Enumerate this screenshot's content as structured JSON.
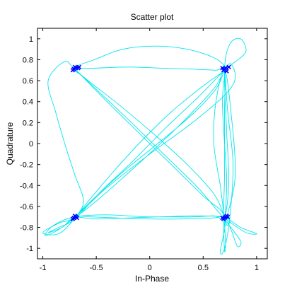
{
  "chart_data": {
    "type": "scatter",
    "title": "Scatter plot",
    "xlabel": "In-Phase",
    "ylabel": "Quadrature",
    "xlim": [
      -1.05,
      1.1
    ],
    "ylim": [
      -1.1,
      1.1
    ],
    "x_ticks": [
      -1,
      -0.5,
      0,
      0.5,
      1
    ],
    "x_tick_labels": [
      "-1",
      "-0.5",
      "0",
      "0.5",
      "1"
    ],
    "y_ticks": [
      -1,
      -0.8,
      -0.6,
      -0.4,
      -0.2,
      0,
      0.2,
      0.4,
      0.6,
      0.8,
      1
    ],
    "y_tick_labels": [
      "-1",
      "-0.8",
      "-0.6",
      "-0.4",
      "-0.2",
      "0",
      "0.2",
      "0.4",
      "0.6",
      "0.8",
      "1"
    ],
    "grid": false,
    "colors": {
      "trajectory": "#00e5ee",
      "points": "#0000ff",
      "axes": "#000000"
    },
    "series": [
      {
        "kind": "trajectory",
        "x": [
          -0.7,
          -0.55,
          -0.35,
          -0.1,
          0.2,
          0.5,
          0.68,
          0.72,
          0.7,
          0.62,
          0.4,
          0.1,
          -0.25,
          -0.55,
          -0.7,
          -0.85,
          -0.98,
          -0.9,
          -0.7,
          -0.4,
          0.0,
          0.4,
          0.7,
          0.75,
          0.72,
          0.7,
          0.6,
          0.35,
          0.05,
          -0.3,
          -0.6,
          -0.7,
          -0.52,
          -0.25,
          0.05,
          0.35,
          0.6,
          0.7,
          0.68,
          0.7,
          0.76,
          0.8,
          0.7,
          0.4,
          0.0,
          -0.4,
          -0.7,
          -0.85,
          -1.0,
          -0.85,
          -0.7,
          -0.62,
          -0.7,
          -0.78,
          -0.88,
          -0.95,
          -0.8,
          -0.71,
          -0.45,
          -0.15,
          0.15,
          0.45,
          0.65,
          0.7,
          0.72,
          0.7,
          0.68,
          0.7,
          0.62,
          0.4,
          0.1,
          -0.2,
          -0.5,
          -0.7,
          -0.72,
          -0.7,
          -0.5,
          -0.2,
          0.1,
          0.4,
          0.6,
          0.7,
          0.74,
          0.72,
          0.7,
          0.75,
          0.85,
          0.9,
          0.8,
          0.7,
          0.7,
          0.73,
          0.78,
          0.75,
          0.7,
          0.66,
          0.7,
          0.5,
          0.2,
          -0.1,
          -0.4,
          -0.65,
          -0.7,
          -0.5,
          -0.2,
          0.1,
          0.4,
          0.62,
          0.7,
          0.7,
          0.7,
          0.69,
          0.7,
          0.71,
          0.7,
          0.76,
          0.82,
          0.85,
          0.72,
          0.7,
          0.66,
          0.6,
          0.62,
          0.7,
          0.76,
          0.8,
          0.72,
          0.7,
          0.75,
          0.9,
          1.0,
          0.85,
          0.7,
          0.6,
          0.3,
          0.0,
          -0.3,
          -0.55,
          -0.7,
          -0.82,
          -0.95,
          -0.85,
          -0.7,
          -0.45,
          -0.15,
          0.15,
          0.45,
          0.66,
          0.7
        ],
        "y": [
          -0.71,
          -0.52,
          -0.28,
          0.0,
          0.3,
          0.55,
          0.68,
          0.72,
          0.7,
          0.52,
          0.28,
          0.02,
          -0.27,
          -0.55,
          -0.7,
          -0.82,
          -0.88,
          -0.78,
          -0.7,
          -0.68,
          -0.7,
          -0.69,
          -0.7,
          -0.74,
          -0.78,
          -0.7,
          -0.48,
          -0.2,
          0.08,
          0.38,
          0.62,
          0.72,
          0.8,
          0.9,
          0.93,
          0.9,
          0.82,
          0.74,
          0.72,
          0.72,
          0.76,
          0.62,
          0.46,
          0.2,
          -0.1,
          -0.42,
          -0.7,
          -0.76,
          -0.85,
          -0.86,
          -0.71,
          -0.55,
          -0.3,
          -0.05,
          0.3,
          0.6,
          0.78,
          0.72,
          0.47,
          0.18,
          -0.12,
          -0.42,
          -0.66,
          -0.7,
          -0.35,
          0.0,
          0.4,
          0.7,
          0.55,
          0.3,
          0.0,
          -0.28,
          -0.55,
          -0.71,
          -0.73,
          -0.7,
          -0.72,
          -0.71,
          -0.7,
          -0.7,
          -0.69,
          -0.7,
          -0.35,
          0.1,
          0.7,
          0.95,
          1.0,
          0.88,
          0.78,
          0.71,
          0.72,
          0.3,
          -0.2,
          -0.7,
          -1.0,
          -1.03,
          -0.7,
          -0.5,
          -0.2,
          0.1,
          0.4,
          0.66,
          0.71,
          0.72,
          0.73,
          0.72,
          0.71,
          0.7,
          0.7,
          0.3,
          -0.3,
          -0.7,
          -1.02,
          -0.95,
          -0.7,
          -0.82,
          -0.98,
          -0.93,
          -0.75,
          -0.72,
          -0.4,
          0.0,
          0.4,
          0.7,
          0.3,
          -0.3,
          -0.7,
          -0.71,
          -0.75,
          -0.85,
          -0.86,
          -0.8,
          -0.7,
          -0.71,
          -0.72,
          -0.72,
          -0.71,
          -0.7,
          -0.7,
          -0.8,
          -0.85,
          -0.8,
          -0.72,
          -0.45,
          -0.16,
          0.15,
          0.44,
          0.66,
          0.71
        ]
      },
      {
        "kind": "points",
        "x": [
          -0.71,
          -0.69,
          -0.72,
          -0.7,
          -0.67,
          -0.66,
          0.7,
          0.71,
          0.69,
          0.72,
          0.68,
          0.74,
          -0.71,
          -0.69,
          -0.72,
          -0.7,
          -0.68,
          0.7,
          0.71,
          0.69,
          0.72,
          0.68,
          0.73
        ],
        "y": [
          0.71,
          0.72,
          0.7,
          0.73,
          0.72,
          0.73,
          0.71,
          0.72,
          0.7,
          0.69,
          0.72,
          0.73,
          -0.71,
          -0.7,
          -0.72,
          -0.69,
          -0.71,
          -0.71,
          -0.7,
          -0.72,
          -0.69,
          -0.71,
          -0.7
        ]
      }
    ]
  }
}
